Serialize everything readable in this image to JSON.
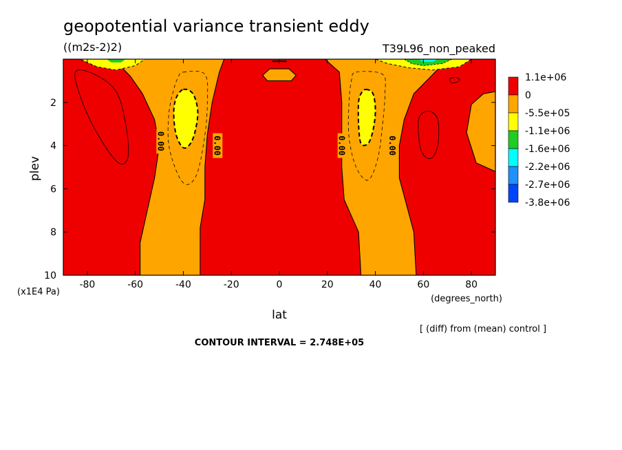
{
  "chart_data": {
    "type": "heatmap",
    "title": "geopotential variance transient eddy",
    "units": "((m2s-2)2)",
    "run_label": "T39L96_non_peaked",
    "xlabel": "lat",
    "xunits": "(degrees_north)",
    "ylabel": "plev",
    "yunits": "(x1E4 Pa)",
    "xlim": [
      -90,
      90
    ],
    "ylim": [
      0,
      10
    ],
    "y_inverted": true,
    "x_ticks": [
      -80,
      -60,
      -40,
      -20,
      0,
      20,
      40,
      60,
      80
    ],
    "x_tick_labels": [
      "-80",
      "-60",
      "-40",
      "-20",
      "0",
      "20",
      "40",
      "60",
      "80"
    ],
    "y_ticks": [
      2,
      4,
      6,
      8,
      10
    ],
    "y_tick_labels": [
      "2",
      "4",
      "6",
      "8",
      "10"
    ],
    "colorbar": {
      "labels": [
        "1.1e+06",
        "0",
        "-5.5e+05",
        "-1.1e+06",
        "-1.6e+06",
        "-2.2e+06",
        "-2.7e+06",
        "-3.8e+06"
      ],
      "colors": [
        "#ee0000",
        "#ffa500",
        "#ffff00",
        "#22cc22",
        "#00ffff",
        "#1e90ff",
        "#0044ff"
      ]
    },
    "contour_labels": [
      "0.00",
      "0.00",
      "0.00",
      "0.00"
    ],
    "note": "[ (diff) from (mean) control ]",
    "contour_interval": "CONTOUR INTERVAL = 2.748E+05",
    "regions": {
      "red": "#ee0000",
      "orange": "#ffa500",
      "yellow": "#ffff00",
      "green": "#22cc22",
      "cyan": "#00ffff"
    }
  }
}
